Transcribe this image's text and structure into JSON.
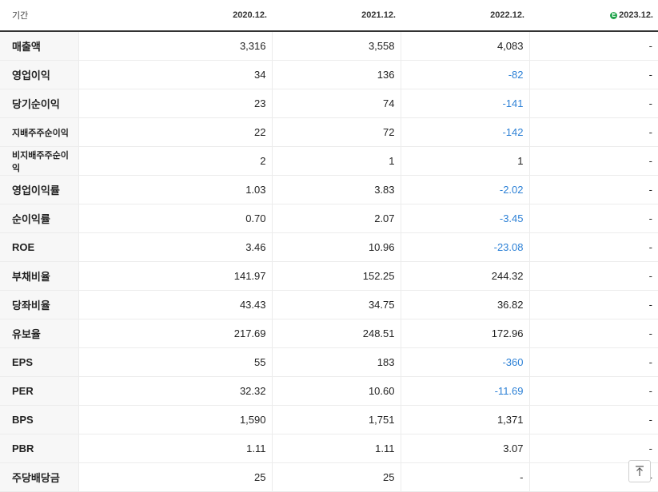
{
  "header": {
    "label": "기간",
    "periods": [
      "2020.12.",
      "2021.12.",
      "2022.12.",
      "2023.12."
    ],
    "estimate_icon_letter": "E"
  },
  "rows": [
    {
      "label": "매출액",
      "values": [
        "3,316",
        "3,558",
        "4,083",
        "-"
      ]
    },
    {
      "label": "영업이익",
      "values": [
        "34",
        "136",
        "-82",
        "-"
      ]
    },
    {
      "label": "당기순이익",
      "values": [
        "23",
        "74",
        "-141",
        "-"
      ]
    },
    {
      "label": "지배주주순이익",
      "values": [
        "22",
        "72",
        "-142",
        "-"
      ]
    },
    {
      "label": "비지배주주순이익",
      "values": [
        "2",
        "1",
        "1",
        "-"
      ]
    },
    {
      "label": "영업이익률",
      "values": [
        "1.03",
        "3.83",
        "-2.02",
        "-"
      ]
    },
    {
      "label": "순이익률",
      "values": [
        "0.70",
        "2.07",
        "-3.45",
        "-"
      ]
    },
    {
      "label": "ROE",
      "values": [
        "3.46",
        "10.96",
        "-23.08",
        "-"
      ]
    },
    {
      "label": "부채비율",
      "values": [
        "141.97",
        "152.25",
        "244.32",
        "-"
      ]
    },
    {
      "label": "당좌비율",
      "values": [
        "43.43",
        "34.75",
        "36.82",
        "-"
      ]
    },
    {
      "label": "유보율",
      "values": [
        "217.69",
        "248.51",
        "172.96",
        "-"
      ]
    },
    {
      "label": "EPS",
      "values": [
        "55",
        "183",
        "-360",
        "-"
      ]
    },
    {
      "label": "PER",
      "values": [
        "32.32",
        "10.60",
        "-11.69",
        "-"
      ]
    },
    {
      "label": "BPS",
      "values": [
        "1,590",
        "1,751",
        "1,371",
        "-"
      ]
    },
    {
      "label": "PBR",
      "values": [
        "1.11",
        "1.11",
        "3.07",
        "-"
      ]
    },
    {
      "label": "주당배당금",
      "values": [
        "25",
        "25",
        "-",
        "-"
      ]
    }
  ],
  "scroll_top_icon": "arrow-up-to-top-icon",
  "colors": {
    "negative": "#2d81d6",
    "estimate": "#1fa34a"
  }
}
